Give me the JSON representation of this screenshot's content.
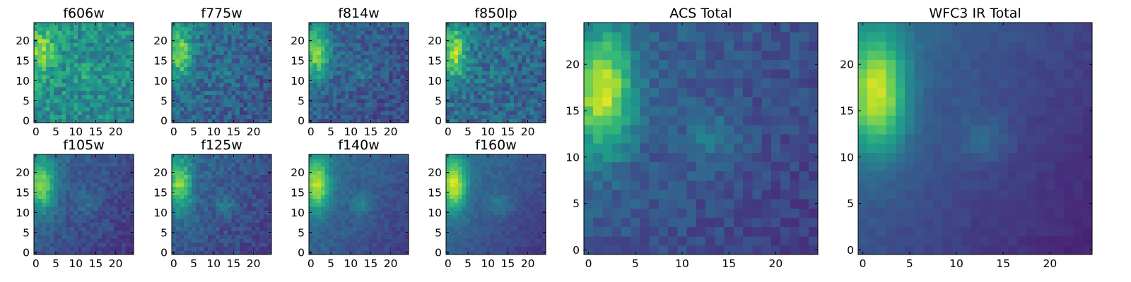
{
  "chart_data": {
    "type": "heatmap",
    "grid_size": 25,
    "colormap": "viridis",
    "colormap_stops": [
      "#440154",
      "#482878",
      "#3e4989",
      "#31688e",
      "#26828e",
      "#1f9e89",
      "#35b779",
      "#6ece58",
      "#b5de2b",
      "#fde725"
    ],
    "panels": [
      {
        "title": "f606w",
        "xticks": [
          "0",
          "5",
          "10",
          "15",
          "20"
        ],
        "yticks": [
          "0",
          "5",
          "10",
          "15",
          "20"
        ],
        "xlim": [
          0,
          24
        ],
        "ylim": [
          0,
          24
        ],
        "seed": 11,
        "base": 0.52,
        "blob": 0.3,
        "bump": 0.1,
        "noise": 0.3,
        "grad": 0.06
      },
      {
        "title": "f775w",
        "xticks": [
          "0",
          "5",
          "10",
          "15",
          "20"
        ],
        "yticks": [
          "0",
          "5",
          "10",
          "15",
          "20"
        ],
        "xlim": [
          0,
          24
        ],
        "ylim": [
          0,
          24
        ],
        "seed": 23,
        "base": 0.4,
        "blob": 0.42,
        "bump": 0.1,
        "noise": 0.26,
        "grad": 0.14
      },
      {
        "title": "f814w",
        "xticks": [
          "0",
          "5",
          "10",
          "15",
          "20"
        ],
        "yticks": [
          "0",
          "5",
          "10",
          "15",
          "20"
        ],
        "xlim": [
          0,
          24
        ],
        "ylim": [
          0,
          24
        ],
        "seed": 37,
        "base": 0.36,
        "blob": 0.46,
        "bump": 0.12,
        "noise": 0.22,
        "grad": 0.14
      },
      {
        "title": "f850lp",
        "xticks": [
          "0",
          "5",
          "10",
          "15",
          "20"
        ],
        "yticks": [
          "0",
          "5",
          "10",
          "15",
          "20"
        ],
        "xlim": [
          0,
          24
        ],
        "ylim": [
          0,
          24
        ],
        "seed": 41,
        "base": 0.4,
        "blob": 0.46,
        "bump": 0.06,
        "noise": 0.28,
        "grad": 0.1
      },
      {
        "title": "f105w",
        "xticks": [
          "0",
          "5",
          "10",
          "15",
          "20"
        ],
        "yticks": [
          "0",
          "5",
          "10",
          "15",
          "20"
        ],
        "xlim": [
          0,
          24
        ],
        "ylim": [
          0,
          24
        ],
        "seed": 53,
        "base": 0.36,
        "blob": 0.5,
        "bump": 0.1,
        "noise": 0.14,
        "grad": 0.2
      },
      {
        "title": "f125w",
        "xticks": [
          "0",
          "5",
          "10",
          "15",
          "20"
        ],
        "yticks": [
          "0",
          "5",
          "10",
          "15",
          "20"
        ],
        "xlim": [
          0,
          24
        ],
        "ylim": [
          0,
          24
        ],
        "seed": 67,
        "base": 0.36,
        "blob": 0.5,
        "bump": 0.14,
        "noise": 0.16,
        "grad": 0.18
      },
      {
        "title": "f140w",
        "xticks": [
          "0",
          "5",
          "10",
          "15",
          "20"
        ],
        "yticks": [
          "0",
          "5",
          "10",
          "15",
          "20"
        ],
        "xlim": [
          0,
          24
        ],
        "ylim": [
          0,
          24
        ],
        "seed": 71,
        "base": 0.4,
        "blob": 0.54,
        "bump": 0.16,
        "noise": 0.1,
        "grad": 0.22
      },
      {
        "title": "f160w",
        "xticks": [
          "0",
          "5",
          "10",
          "15",
          "20"
        ],
        "yticks": [
          "0",
          "5",
          "10",
          "15",
          "20"
        ],
        "xlim": [
          0,
          24
        ],
        "ylim": [
          0,
          24
        ],
        "seed": 83,
        "base": 0.4,
        "blob": 0.58,
        "bump": 0.16,
        "noise": 0.08,
        "grad": 0.24
      },
      {
        "title": "ACS Total",
        "xticks": [
          "0",
          "5",
          "10",
          "15",
          "20"
        ],
        "yticks": [
          "0",
          "5",
          "10",
          "15",
          "20"
        ],
        "xlim": [
          0,
          24
        ],
        "ylim": [
          0,
          24
        ],
        "seed": 97,
        "base": 0.34,
        "blob": 0.62,
        "bump": 0.16,
        "noise": 0.14,
        "grad": 0.16
      },
      {
        "title": "WFC3 IR Total",
        "xticks": [
          "0",
          "5",
          "10",
          "15",
          "20"
        ],
        "yticks": [
          "0",
          "5",
          "10",
          "15",
          "20"
        ],
        "xlim": [
          0,
          24
        ],
        "ylim": [
          0,
          24
        ],
        "seed": 101,
        "base": 0.36,
        "blob": 0.62,
        "bump": 0.12,
        "noise": 0.05,
        "grad": 0.26
      }
    ]
  }
}
